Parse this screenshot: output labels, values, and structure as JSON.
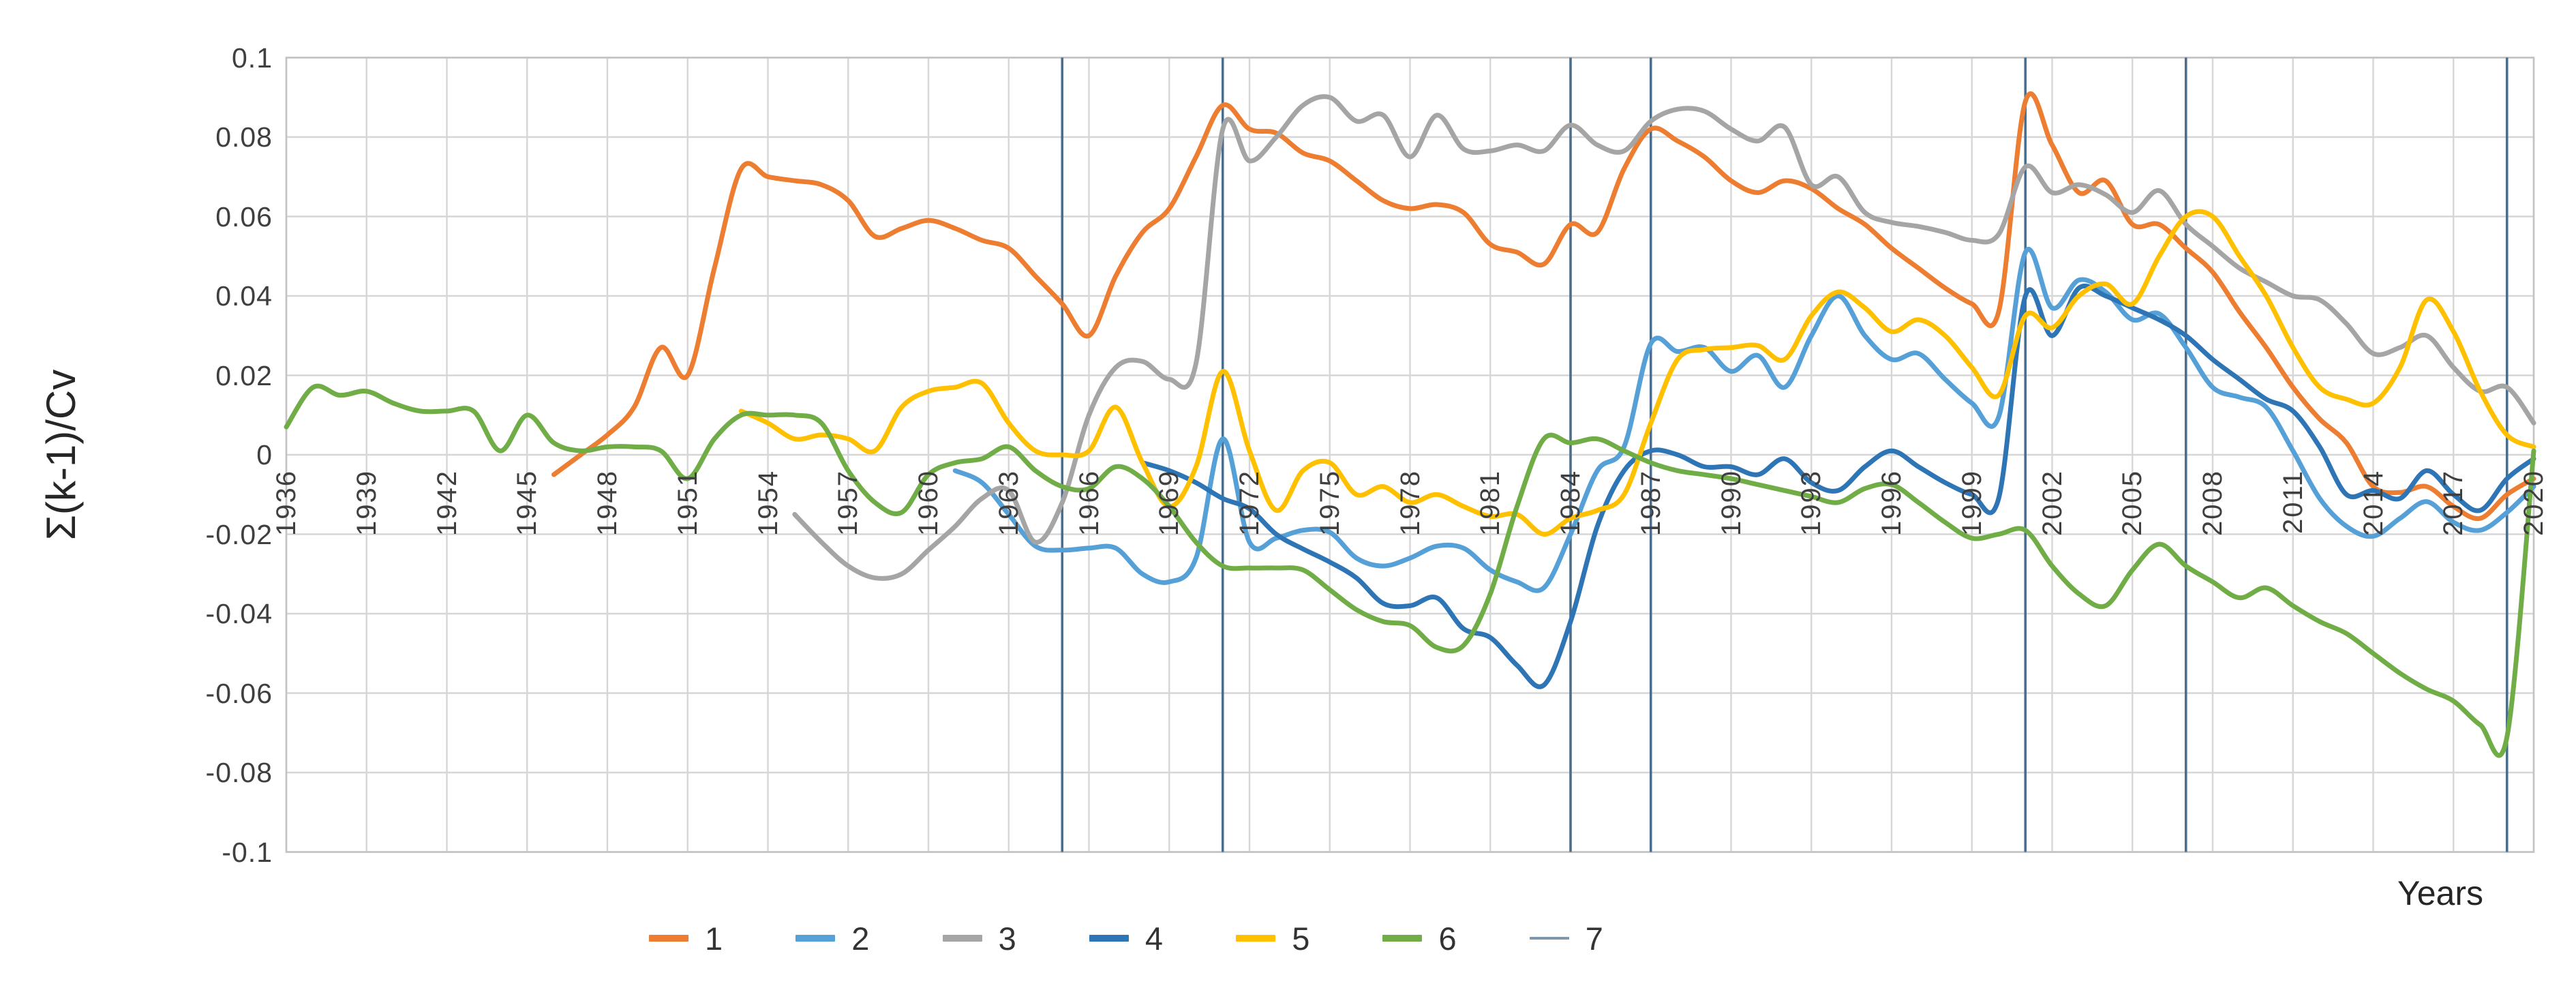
{
  "chart_data": {
    "type": "line",
    "title": "",
    "xlabel": "Years",
    "ylabel": "Σ(k-1)/Cv",
    "x_min": 1936,
    "x_max": 2020,
    "x_tick_step": 3,
    "x_tick_labels": [
      "1936",
      "1939",
      "1942",
      "1945",
      "1948",
      "1951",
      "1954",
      "1957",
      "1960",
      "1963",
      "1966",
      "1969",
      "1972",
      "1975",
      "1978",
      "1981",
      "1984",
      "1987",
      "1990",
      "1993",
      "1996",
      "1999",
      "2002",
      "2005",
      "2008",
      "2011",
      "2014",
      "2017",
      "2020"
    ],
    "ylim": [
      -0.1,
      0.1
    ],
    "y_tick_step": 0.02,
    "y_tick_labels": [
      "0.1",
      "0.08",
      "0.06",
      "0.04",
      "0.02",
      "0",
      "-0.02",
      "-0.04",
      "-0.06",
      "-0.08",
      "-0.1"
    ],
    "grid": true,
    "legend_position": "bottom",
    "grid_color": "#d6d6d6",
    "border_color": "#c3c3c3",
    "series": [
      {
        "name": "1",
        "color": "#ED7D31",
        "start_year": 1946,
        "values": [
          -0.005,
          0.0,
          0.005,
          0.012,
          0.027,
          0.02,
          0.047,
          0.072,
          0.07,
          0.069,
          0.068,
          0.064,
          0.055,
          0.057,
          0.059,
          0.057,
          0.054,
          0.052,
          0.045,
          0.038,
          0.03,
          0.045,
          0.056,
          0.062,
          0.075,
          0.088,
          0.082,
          0.081,
          0.076,
          0.074,
          0.069,
          0.064,
          0.062,
          0.063,
          0.061,
          0.053,
          0.051,
          0.048,
          0.058,
          0.056,
          0.072,
          0.082,
          0.079,
          0.075,
          0.069,
          0.066,
          0.069,
          0.067,
          0.062,
          0.058,
          0.052,
          0.047,
          0.042,
          0.038,
          0.036,
          0.089,
          0.078,
          0.066,
          0.069,
          0.058,
          0.058,
          0.052,
          0.046,
          0.036,
          0.027,
          0.017,
          0.009,
          0.003,
          -0.008,
          -0.0095,
          -0.008,
          -0.013,
          -0.016,
          -0.01,
          -0.006
        ]
      },
      {
        "name": "2",
        "color": "#56A0D8",
        "start_year": 1961,
        "values": [
          -0.004,
          -0.007,
          -0.015,
          -0.023,
          -0.024,
          -0.0235,
          -0.0235,
          -0.03,
          -0.032,
          -0.026,
          0.004,
          -0.022,
          -0.021,
          -0.019,
          -0.0195,
          -0.026,
          -0.028,
          -0.026,
          -0.023,
          -0.0235,
          -0.029,
          -0.032,
          -0.0335,
          -0.02,
          -0.004,
          0.002,
          0.028,
          0.026,
          0.027,
          0.021,
          0.025,
          0.017,
          0.03,
          0.04,
          0.03,
          0.024,
          0.0255,
          0.019,
          0.013,
          0.0095,
          0.051,
          0.037,
          0.044,
          0.041,
          0.034,
          0.0355,
          0.027,
          0.017,
          0.0145,
          0.012,
          0.001,
          -0.011,
          -0.018,
          -0.0205,
          -0.016,
          -0.0118,
          -0.017,
          -0.019,
          -0.0145,
          -0.008
        ]
      },
      {
        "name": "3",
        "color": "#A5A5A5",
        "start_year": 1955,
        "values": [
          -0.015,
          -0.022,
          -0.028,
          -0.031,
          -0.03,
          -0.024,
          -0.018,
          -0.011,
          -0.009,
          -0.022,
          -0.012,
          0.01,
          0.022,
          0.0235,
          0.019,
          0.023,
          0.082,
          0.074,
          0.08,
          0.088,
          0.09,
          0.084,
          0.0855,
          0.075,
          0.0855,
          0.077,
          0.0765,
          0.078,
          0.0765,
          0.083,
          0.078,
          0.0765,
          0.084,
          0.087,
          0.0865,
          0.082,
          0.079,
          0.0825,
          0.068,
          0.07,
          0.061,
          0.0585,
          0.0575,
          0.056,
          0.054,
          0.0555,
          0.0725,
          0.066,
          0.068,
          0.0655,
          0.061,
          0.0665,
          0.058,
          0.0525,
          0.047,
          0.0435,
          0.04,
          0.039,
          0.033,
          0.0255,
          0.027,
          0.03,
          0.022,
          0.016,
          0.017,
          0.008
        ]
      },
      {
        "name": "4",
        "color": "#2E75B6",
        "start_year": 1968,
        "values": [
          -0.002,
          -0.004,
          -0.007,
          -0.011,
          -0.0136,
          -0.02,
          -0.0237,
          -0.027,
          -0.031,
          -0.0374,
          -0.038,
          -0.036,
          -0.0438,
          -0.046,
          -0.053,
          -0.058,
          -0.042,
          -0.018,
          -0.004,
          0.001,
          0.0,
          -0.003,
          -0.003,
          -0.005,
          -0.001,
          -0.007,
          -0.009,
          -0.003,
          0.001,
          -0.003,
          -0.007,
          -0.01,
          -0.011,
          0.04,
          0.03,
          0.042,
          0.04,
          0.037,
          0.034,
          0.03,
          0.024,
          0.019,
          0.014,
          0.011,
          0.002,
          -0.01,
          -0.009,
          -0.011,
          -0.004,
          -0.01,
          -0.014,
          -0.006,
          -0.001
        ]
      },
      {
        "name": "5",
        "color": "#FFC000",
        "start_year": 1953,
        "values": [
          0.011,
          0.008,
          0.004,
          0.005,
          0.004,
          0.001,
          0.012,
          0.016,
          0.017,
          0.018,
          0.008,
          0.001,
          0.0,
          0.001,
          0.012,
          -0.002,
          -0.013,
          -0.003,
          0.021,
          0.001,
          -0.014,
          -0.004,
          -0.002,
          -0.01,
          -0.008,
          -0.012,
          -0.01,
          -0.013,
          -0.0155,
          -0.015,
          -0.02,
          -0.016,
          -0.014,
          -0.01,
          0.008,
          0.024,
          0.0265,
          0.027,
          0.0275,
          0.024,
          0.035,
          0.041,
          0.037,
          0.031,
          0.034,
          0.03,
          0.022,
          0.015,
          0.035,
          0.032,
          0.04,
          0.043,
          0.038,
          0.05,
          0.06,
          0.06,
          0.05,
          0.04,
          0.027,
          0.017,
          0.014,
          0.013,
          0.022,
          0.039,
          0.031,
          0.016,
          0.005,
          0.002
        ]
      },
      {
        "name": "6",
        "color": "#70AD47",
        "start_year": 1936,
        "values": [
          0.007,
          0.017,
          0.015,
          0.016,
          0.013,
          0.011,
          0.011,
          0.011,
          0.001,
          0.01,
          0.003,
          0.001,
          0.002,
          0.002,
          0.001,
          -0.006,
          0.004,
          0.01,
          0.01,
          0.01,
          0.008,
          -0.004,
          -0.012,
          -0.0145,
          -0.005,
          -0.002,
          -0.001,
          0.002,
          -0.004,
          -0.008,
          -0.0085,
          -0.003,
          -0.006,
          -0.013,
          -0.022,
          -0.028,
          -0.0285,
          -0.0285,
          -0.029,
          -0.034,
          -0.039,
          -0.042,
          -0.043,
          -0.0485,
          -0.048,
          -0.035,
          -0.013,
          0.004,
          0.003,
          0.004,
          0.001,
          -0.002,
          -0.004,
          -0.005,
          -0.006,
          -0.0075,
          -0.009,
          -0.0105,
          -0.012,
          -0.0085,
          -0.0075,
          -0.012,
          -0.017,
          -0.021,
          -0.02,
          -0.019,
          -0.028,
          -0.035,
          -0.038,
          -0.029,
          -0.0225,
          -0.028,
          -0.032,
          -0.036,
          -0.0335,
          -0.038,
          -0.042,
          -0.045,
          -0.05,
          -0.055,
          -0.059,
          -0.062,
          -0.068,
          -0.071,
          0.001
        ]
      }
    ],
    "change_point_lines": {
      "name": "7",
      "color": "#4B6E8F",
      "years": [
        1965,
        1971,
        1984,
        1987,
        2001,
        2007,
        2019
      ]
    }
  },
  "legend": {
    "items": [
      {
        "label": "1",
        "color": "#ED7D31",
        "thickness": 10
      },
      {
        "label": "2",
        "color": "#56A0D8",
        "thickness": 10
      },
      {
        "label": "3",
        "color": "#A5A5A5",
        "thickness": 10
      },
      {
        "label": "4",
        "color": "#2E75B6",
        "thickness": 10
      },
      {
        "label": "5",
        "color": "#FFC000",
        "thickness": 10
      },
      {
        "label": "6",
        "color": "#70AD47",
        "thickness": 10
      },
      {
        "label": "7",
        "color": "#7E97AC",
        "thickness": 4
      }
    ]
  }
}
